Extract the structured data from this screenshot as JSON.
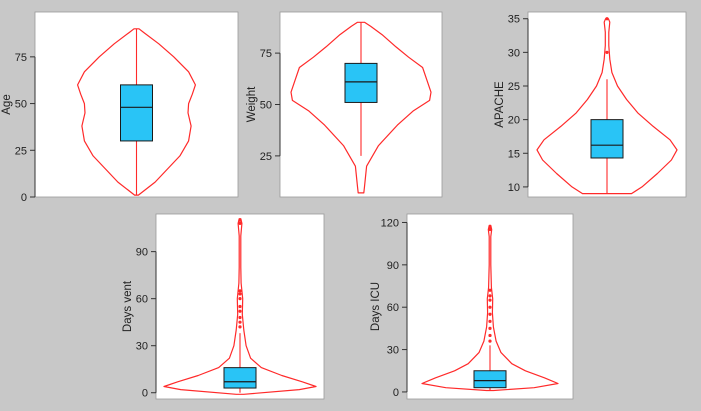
{
  "colors": {
    "background": "#c8c8c8",
    "panel": "#ffffff",
    "violin": "#ff2a2a",
    "box_fill": "#29c4f6",
    "box_edge": "#1a1a1a",
    "axis": "#333333"
  },
  "chart_data": [
    {
      "type": "violin",
      "ylabel": "Age",
      "ylim": [
        0,
        99
      ],
      "yticks": [
        0,
        25,
        50,
        75
      ],
      "grid": false,
      "box": {
        "q1": 30,
        "median": 48,
        "q3": 60,
        "whisker_low": 1,
        "whisker_high": 90
      },
      "outliers": [],
      "density": [
        [
          1,
          0.03
        ],
        [
          8,
          0.3
        ],
        [
          15,
          0.5
        ],
        [
          22,
          0.7
        ],
        [
          30,
          0.84
        ],
        [
          38,
          0.88
        ],
        [
          45,
          0.83
        ],
        [
          50,
          0.84
        ],
        [
          55,
          0.9
        ],
        [
          60,
          0.95
        ],
        [
          67,
          0.84
        ],
        [
          75,
          0.6
        ],
        [
          82,
          0.36
        ],
        [
          88,
          0.12
        ],
        [
          90,
          0.04
        ]
      ]
    },
    {
      "type": "violin",
      "ylabel": "Weight",
      "ylim": [
        5,
        95
      ],
      "yticks": [
        25,
        50,
        75
      ],
      "grid": false,
      "box": {
        "q1": 51,
        "median": 61,
        "q3": 70,
        "whisker_low": 25,
        "whisker_high": 90
      },
      "outliers": [],
      "density": [
        [
          7,
          0.04
        ],
        [
          10,
          0.05
        ],
        [
          20,
          0.08
        ],
        [
          30,
          0.25
        ],
        [
          40,
          0.52
        ],
        [
          47,
          0.75
        ],
        [
          52,
          0.98
        ],
        [
          56,
          1.0
        ],
        [
          62,
          0.94
        ],
        [
          68,
          0.88
        ],
        [
          73,
          0.68
        ],
        [
          78,
          0.5
        ],
        [
          84,
          0.3
        ],
        [
          88,
          0.14
        ],
        [
          90,
          0.05
        ]
      ]
    },
    {
      "type": "violin",
      "ylabel": "APACHE",
      "ylim": [
        8.5,
        36
      ],
      "yticks": [
        10,
        15,
        20,
        25,
        30,
        35
      ],
      "grid": false,
      "box": {
        "q1": 14.3,
        "median": 16.2,
        "q3": 20.0,
        "whisker_low": 9,
        "whisker_high": 26
      },
      "outliers": [
        30,
        35
      ],
      "density": [
        [
          9,
          0.35
        ],
        [
          10,
          0.5
        ],
        [
          12,
          0.72
        ],
        [
          14,
          0.92
        ],
        [
          15.5,
          1.0
        ],
        [
          17,
          0.9
        ],
        [
          19,
          0.66
        ],
        [
          21,
          0.44
        ],
        [
          23,
          0.28
        ],
        [
          25,
          0.15
        ],
        [
          27,
          0.07
        ],
        [
          29,
          0.04
        ],
        [
          31,
          0.025
        ],
        [
          33,
          0.025
        ],
        [
          34.5,
          0.04
        ],
        [
          35,
          0.02
        ]
      ]
    },
    {
      "type": "violin",
      "ylabel": "Days vent",
      "ylim": [
        -4,
        114
      ],
      "yticks": [
        0,
        30,
        60,
        90
      ],
      "grid": false,
      "box": {
        "q1": 3,
        "median": 7,
        "q3": 16,
        "whisker_low": 0,
        "whisker_high": 38
      },
      "outliers": [
        42,
        45,
        48,
        52,
        55,
        60,
        63,
        65,
        108,
        110
      ],
      "density": [
        [
          -1,
          0.05
        ],
        [
          2,
          0.78
        ],
        [
          4,
          1.0
        ],
        [
          7,
          0.82
        ],
        [
          11,
          0.55
        ],
        [
          16,
          0.28
        ],
        [
          22,
          0.14
        ],
        [
          30,
          0.08
        ],
        [
          40,
          0.05
        ],
        [
          50,
          0.03
        ],
        [
          60,
          0.035
        ],
        [
          70,
          0.015
        ],
        [
          80,
          0.01
        ],
        [
          100,
          0.01
        ],
        [
          108,
          0.025
        ],
        [
          111,
          0.01
        ]
      ]
    },
    {
      "type": "violin",
      "ylabel": "Days ICU",
      "ylim": [
        -5,
        126
      ],
      "yticks": [
        0,
        30,
        60,
        90,
        120
      ],
      "grid": false,
      "box": {
        "q1": 3,
        "median": 8,
        "q3": 15,
        "whisker_low": 1,
        "whisker_high": 33
      },
      "outliers": [
        36,
        40,
        45,
        50,
        55,
        60,
        65,
        68,
        72,
        115,
        117
      ],
      "density": [
        [
          1,
          0.05
        ],
        [
          3,
          0.65
        ],
        [
          6,
          1.0
        ],
        [
          10,
          0.8
        ],
        [
          15,
          0.52
        ],
        [
          20,
          0.32
        ],
        [
          28,
          0.16
        ],
        [
          36,
          0.09
        ],
        [
          46,
          0.05
        ],
        [
          56,
          0.035
        ],
        [
          66,
          0.04
        ],
        [
          74,
          0.02
        ],
        [
          90,
          0.012
        ],
        [
          110,
          0.012
        ],
        [
          115,
          0.025
        ],
        [
          118,
          0.01
        ]
      ]
    }
  ]
}
